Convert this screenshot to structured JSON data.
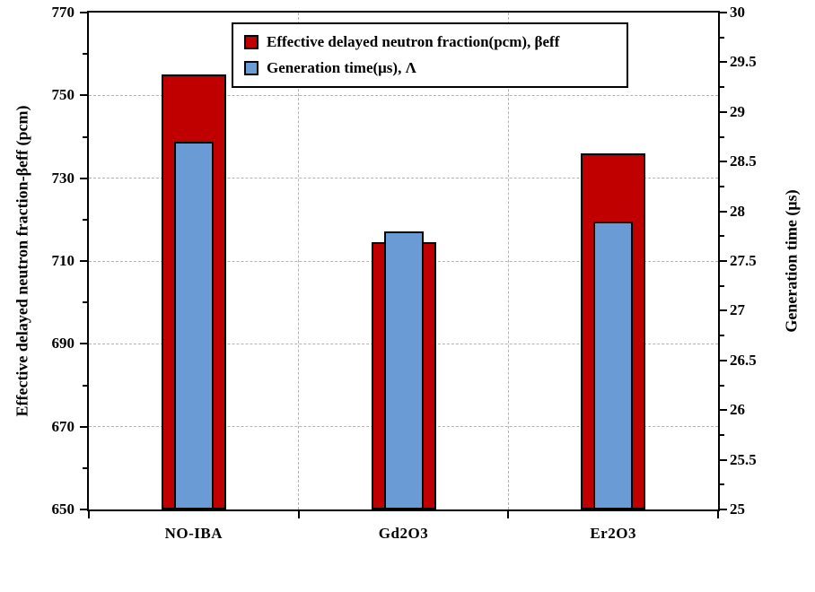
{
  "chart_data": {
    "type": "bar",
    "categories": [
      "NO-IBA",
      "Gd2O3",
      "Er2O3"
    ],
    "series": [
      {
        "name": "Effective delayed neutron fraction(pcm), βeff",
        "axis": "left",
        "color": "#c00000",
        "values": [
          755,
          714.5,
          736
        ]
      },
      {
        "name": "Generation time(μs), Λ",
        "axis": "right",
        "color": "#6b9bd5",
        "values": [
          28.7,
          27.8,
          27.9
        ]
      }
    ],
    "axes": {
      "left": {
        "label": "Effective delayed neutron fraction-βeff (pcm)",
        "min": 650,
        "max": 770,
        "major_step": 20,
        "minor_step": 10
      },
      "right": {
        "label": "Generation time (μs)",
        "min": 25,
        "max": 30,
        "major_step": 0.5,
        "minor_step": 0.25
      }
    },
    "grid": true,
    "legend_position": "top-center"
  }
}
